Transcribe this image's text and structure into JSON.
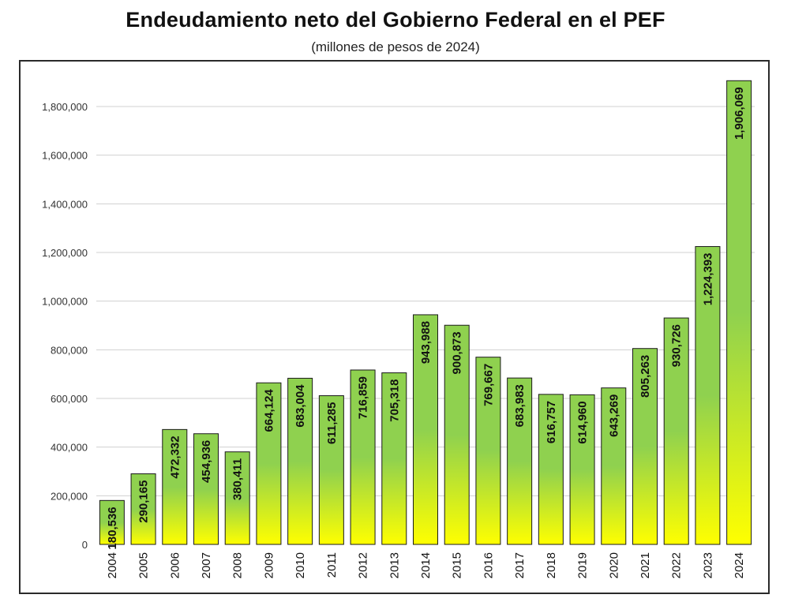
{
  "chart_data": {
    "type": "bar",
    "title": "Endeudamiento neto del Gobierno Federal en el PEF",
    "subtitle": "(millones de pesos de 2024)",
    "xlabel": "",
    "ylabel": "",
    "categories": [
      "2004",
      "2005",
      "2006",
      "2007",
      "2008",
      "2009",
      "2010",
      "2011",
      "2012",
      "2013",
      "2014",
      "2015",
      "2016",
      "2017",
      "2018",
      "2019",
      "2020",
      "2021",
      "2022",
      "2023",
      "2024"
    ],
    "values": [
      180536,
      290165,
      472332,
      454936,
      380411,
      664124,
      683004,
      611285,
      716859,
      705318,
      943988,
      900873,
      769667,
      683983,
      616757,
      614960,
      643269,
      805263,
      930726,
      1224393,
      1906069
    ],
    "value_labels": [
      "180,536",
      "290,165",
      "472,332",
      "454,936",
      "380,411",
      "664,124",
      "683,004",
      "611,285",
      "716,859",
      "705,318",
      "943,988",
      "900,873",
      "769,667",
      "683,983",
      "616,757",
      "614,960",
      "643,269",
      "805,263",
      "930,726",
      "1,224,393",
      "1,906,069"
    ],
    "ylim": [
      0,
      1900000
    ],
    "yticks": [
      0,
      200000,
      400000,
      600000,
      800000,
      1000000,
      1200000,
      1400000,
      1600000,
      1800000
    ],
    "ytick_labels": [
      "0",
      "200,000",
      "400,000",
      "600,000",
      "800,000",
      "1,000,000",
      "1,200,000",
      "1,400,000",
      "1,600,000",
      "1,800,000"
    ],
    "grid": true,
    "legend": "none",
    "colors": {
      "bar_top": "#8fd14f",
      "bar_bottom": "#ffff00",
      "bar_outline": "#1a1a1a",
      "grid": "#d0d0d0"
    }
  }
}
